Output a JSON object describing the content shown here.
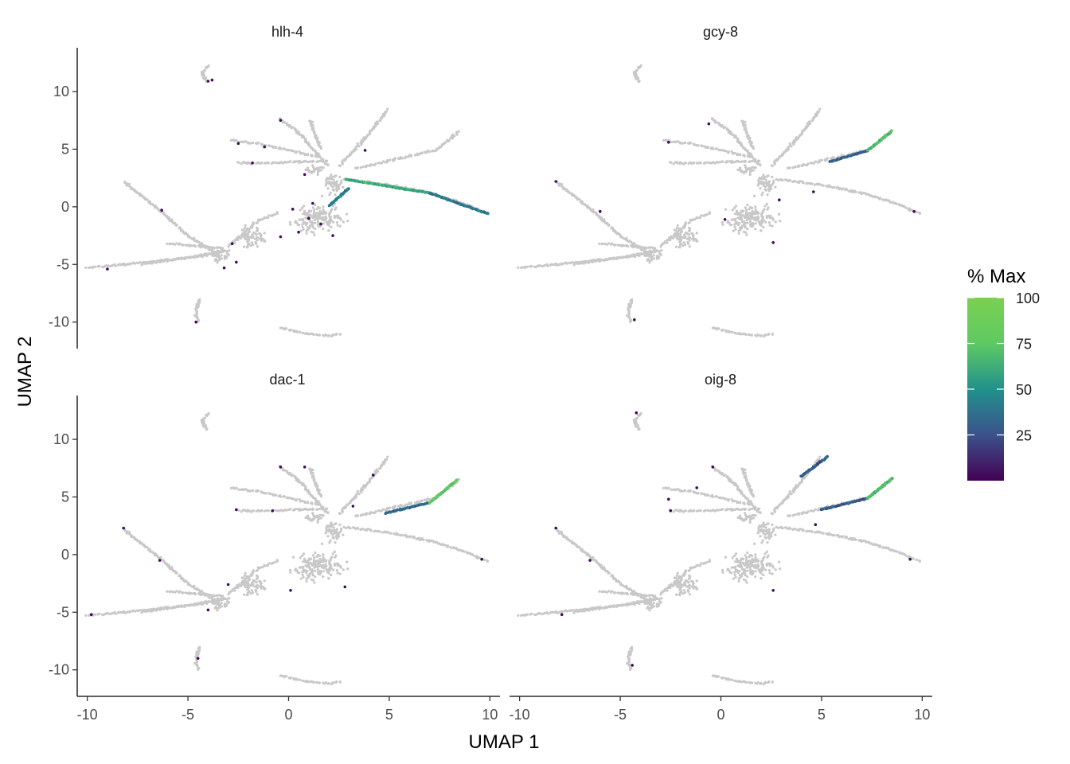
{
  "chart_data": {
    "type": "scatter",
    "xlabel": "UMAP 1",
    "ylabel": "UMAP 2",
    "xlim": [
      -10.5,
      10.5
    ],
    "ylim": [
      -12.3,
      13.8
    ],
    "x_ticks": [
      -10,
      -5,
      0,
      5,
      10
    ],
    "y_ticks": [
      -10,
      -5,
      0,
      5,
      10
    ],
    "x_tick_labels": [
      "-10",
      "-5",
      "0",
      "5",
      "10"
    ],
    "y_tick_labels": [
      "-10",
      "-5",
      "0",
      "5",
      "10"
    ],
    "background_color": "#c8c8c8",
    "legend": {
      "title": "% Max",
      "placement": "right",
      "ticks": [
        25,
        50,
        75,
        100
      ],
      "tick_labels": [
        "25",
        "50",
        "75",
        "100"
      ],
      "colors": [
        "#440154",
        "#3b528b",
        "#21918c",
        "#5ec962"
      ]
    },
    "panels": [
      {
        "title": "hlh-4",
        "segments": [
          {
            "from": [
              2.8,
              2.4
            ],
            "to": [
              7,
              1.2
            ],
            "pct": 60
          },
          {
            "from": [
              7,
              1.2
            ],
            "to": [
              9.9,
              -0.6
            ],
            "pct": 40
          },
          {
            "from": [
              2.0,
              0.1
            ],
            "to": [
              3.0,
              1.6
            ],
            "pct": 45
          }
        ],
        "points": [
          [
            -3.8,
            11
          ],
          [
            -2.5,
            5.5
          ],
          [
            -1.8,
            3.8
          ],
          [
            -1.2,
            5.2
          ],
          [
            0.8,
            2.8
          ],
          [
            1.2,
            0.3
          ],
          [
            1.6,
            -1.5
          ],
          [
            2.2,
            -2.5
          ],
          [
            0.5,
            -2.2
          ],
          [
            -0.4,
            -2.6
          ],
          [
            -2.8,
            -3.2
          ],
          [
            -3.2,
            -5.3
          ],
          [
            -6.3,
            -0.3
          ],
          [
            -9.0,
            -5.4
          ],
          [
            -4.6,
            -10
          ],
          [
            -4.0,
            10.9
          ],
          [
            -0.4,
            7.5
          ],
          [
            3.8,
            4.9
          ],
          [
            0.2,
            -0.2
          ],
          [
            1.0,
            -1.0
          ],
          [
            -2.6,
            -4.8
          ]
        ]
      },
      {
        "title": "gcy-8",
        "segments": [
          {
            "from": [
              5.4,
              3.9
            ],
            "to": [
              7.3,
              4.9
            ],
            "pct": 30
          },
          {
            "from": [
              7.3,
              4.9
            ],
            "to": [
              8.5,
              6.6
            ],
            "pct": 70
          }
        ],
        "points": [
          [
            -8.2,
            2.2
          ],
          [
            -6,
            -0.4
          ],
          [
            0.2,
            -1.1
          ],
          [
            2.6,
            -3.1
          ],
          [
            2.9,
            0.6
          ],
          [
            4.6,
            1.3
          ],
          [
            -4.3,
            -9.8
          ],
          [
            -0.6,
            7.2
          ],
          [
            -2.6,
            5.6
          ],
          [
            9.6,
            -0.4
          ]
        ]
      },
      {
        "title": "dac-1",
        "segments": [
          {
            "from": [
              4.8,
              3.6
            ],
            "to": [
              7.0,
              4.5
            ],
            "pct": 35
          },
          {
            "from": [
              7.0,
              4.5
            ],
            "to": [
              8.4,
              6.5
            ],
            "pct": 80
          }
        ],
        "points": [
          [
            -8.2,
            2.3
          ],
          [
            -6.4,
            -0.5
          ],
          [
            -9.8,
            -5.2
          ],
          [
            -4,
            -4.8
          ],
          [
            -3,
            -2.6
          ],
          [
            0.1,
            -3.1
          ],
          [
            2.8,
            -2.8
          ],
          [
            -4.5,
            -9.0
          ],
          [
            -0.4,
            7.6
          ],
          [
            0.8,
            7.6
          ],
          [
            4.2,
            6.9
          ],
          [
            -2.6,
            3.9
          ],
          [
            -0.8,
            3.8
          ],
          [
            3.2,
            4.2
          ],
          [
            9.6,
            -0.4
          ]
        ]
      },
      {
        "title": "oig-8",
        "segments": [
          {
            "from": [
              4.0,
              6.8
            ],
            "to": [
              5.3,
              8.5
            ],
            "pct": 30
          },
          {
            "from": [
              5.0,
              3.9
            ],
            "to": [
              7.3,
              4.9
            ],
            "pct": 30
          },
          {
            "from": [
              7.3,
              4.9
            ],
            "to": [
              8.5,
              6.6
            ],
            "pct": 70
          }
        ],
        "points": [
          [
            -8.2,
            2.3
          ],
          [
            -6.5,
            -0.5
          ],
          [
            -7.9,
            -5.2
          ],
          [
            -4.4,
            -9.6
          ],
          [
            -4.2,
            12.3
          ],
          [
            -0.4,
            7.6
          ],
          [
            -1.2,
            5.8
          ],
          [
            -2.6,
            4.8
          ],
          [
            -2.5,
            3.8
          ],
          [
            2.6,
            -3.1
          ],
          [
            4.7,
            2.6
          ],
          [
            9.4,
            -0.4
          ]
        ]
      }
    ]
  }
}
